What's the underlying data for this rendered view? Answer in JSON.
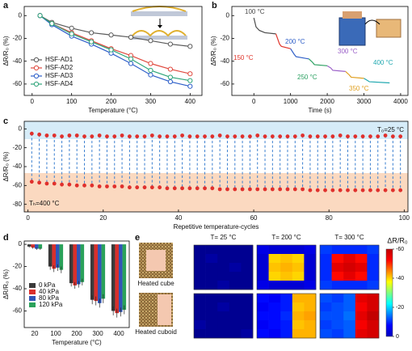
{
  "chart_data": [
    {
      "type": "line",
      "label": "a",
      "xlabel": "Temperature (°C)",
      "ylabel": "ΔR/R₀ (%)",
      "x": [
        20,
        50,
        100,
        150,
        200,
        250,
        300,
        350,
        400
      ],
      "xlim": [
        -20,
        430
      ],
      "xticks": [
        0,
        100,
        200,
        300,
        400
      ],
      "ylim": [
        -70,
        8
      ],
      "yticks": [
        0,
        -20,
        -40,
        -60
      ],
      "marker": "open-circle",
      "legend": "lower left",
      "series": [
        {
          "name": "HSF-AD1",
          "color": "#5a5a5a",
          "values": [
            0,
            -6,
            -11,
            -15,
            -17,
            -19,
            -22,
            -25,
            -27
          ]
        },
        {
          "name": "HSF-AD2",
          "color": "#e04a3f",
          "values": [
            0,
            -7,
            -15,
            -22,
            -29,
            -35,
            -42,
            -47,
            -51
          ]
        },
        {
          "name": "HSF-AD3",
          "color": "#2e5fc9",
          "values": [
            0,
            -8,
            -18,
            -25,
            -33,
            -42,
            -52,
            -58,
            -62
          ]
        },
        {
          "name": "HSF-AD4",
          "color": "#2fa57a",
          "values": [
            0,
            -7,
            -16,
            -23,
            -30,
            -38,
            -48,
            -54,
            -57
          ]
        }
      ]
    },
    {
      "type": "line",
      "label": "b",
      "xlabel": "Time (s)",
      "ylabel": "ΔR/R₀ (%)",
      "xlim": [
        -600,
        4200
      ],
      "xticks": [
        0,
        1000,
        2000,
        3000,
        4000
      ],
      "ylim": [
        -70,
        8
      ],
      "yticks": [
        0,
        -20,
        -40,
        -60
      ],
      "series": [
        {
          "name": "100 °C",
          "color": "#4a4a4a",
          "x": [
            0,
            60,
            150,
            300,
            600
          ],
          "values": [
            -2,
            -10,
            -13,
            -15,
            -16
          ]
        },
        {
          "name": "150 °C",
          "color": "#e0352b",
          "x": [
            600,
            700,
            750,
            1000
          ],
          "values": [
            -16,
            -25,
            -27,
            -29
          ]
        },
        {
          "name": "200 °C",
          "color": "#2f5fc8",
          "x": [
            1000,
            1100,
            1150,
            1500
          ],
          "values": [
            -29,
            -34,
            -36,
            -38
          ]
        },
        {
          "name": "250 °C",
          "color": "#2aa060",
          "x": [
            1500,
            1600,
            1650,
            2000
          ],
          "values": [
            -38,
            -41,
            -43,
            -44
          ]
        },
        {
          "name": "300 °C",
          "color": "#9a5fc8",
          "x": [
            2000,
            2100,
            2150,
            2500
          ],
          "values": [
            -44,
            -46,
            -48,
            -49
          ]
        },
        {
          "name": "350 °C",
          "color": "#e0a020",
          "x": [
            2500,
            2600,
            2650,
            3000
          ],
          "values": [
            -49,
            -52,
            -54,
            -55
          ]
        },
        {
          "name": "400 °C",
          "color": "#20a8b0",
          "x": [
            3000,
            3100,
            3150,
            3700
          ],
          "values": [
            -55,
            -57,
            -58,
            -59
          ]
        }
      ]
    },
    {
      "type": "cycle",
      "label": "c",
      "xlabel": "Repetitive temperature-cycles",
      "ylabel": "ΔR/R₀ (%)",
      "xlim": [
        -1,
        101
      ],
      "xticks": [
        0,
        20,
        40,
        60,
        80,
        100
      ],
      "ylim": [
        -88,
        8
      ],
      "yticks": [
        0,
        -20,
        -40,
        -60,
        -80
      ],
      "annotations": [
        "T₀=25 °C",
        "Tₕ=400 °C"
      ],
      "line_color": "#3a7fd0",
      "x": [
        1,
        3,
        5,
        7,
        9,
        11,
        13,
        15,
        17,
        19,
        21,
        23,
        25,
        27,
        29,
        31,
        33,
        35,
        37,
        39,
        41,
        43,
        45,
        47,
        49,
        51,
        53,
        55,
        57,
        59,
        61,
        63,
        65,
        67,
        69,
        71,
        73,
        75,
        77,
        79,
        81,
        83,
        85,
        87,
        89,
        91,
        93,
        95,
        97,
        99
      ],
      "series": [
        {
          "color": "#e0302c",
          "values": [
            -5,
            -6,
            -7,
            -7,
            -8,
            -7,
            -7,
            -8,
            -8,
            -7,
            -8,
            -8,
            -7,
            -8,
            -8,
            -8,
            -7,
            -8,
            -8,
            -8,
            -7,
            -8,
            -8,
            -8,
            -8,
            -7,
            -8,
            -8,
            -8,
            -8,
            -7,
            -8,
            -8,
            -8,
            -8,
            -8,
            -7,
            -8,
            -8,
            -8,
            -8,
            -7,
            -8,
            -8,
            -8,
            -8,
            -8,
            -7,
            -8,
            -8
          ]
        },
        {
          "color": "#e0302c",
          "values": [
            -56,
            -57,
            -58,
            -58,
            -59,
            -59,
            -60,
            -60,
            -60,
            -61,
            -61,
            -61,
            -61,
            -62,
            -62,
            -62,
            -62,
            -62,
            -63,
            -63,
            -63,
            -63,
            -63,
            -63,
            -63,
            -64,
            -64,
            -64,
            -64,
            -64,
            -64,
            -64,
            -64,
            -64,
            -64,
            -64,
            -64,
            -65,
            -65,
            -65,
            -65,
            -65,
            -65,
            -65,
            -65,
            -65,
            -65,
            -65,
            -65,
            -65
          ]
        }
      ]
    },
    {
      "type": "bar",
      "label": "d",
      "xlabel": "Temperature (°C)",
      "ylabel": "ΔR/R₀ (%)",
      "categories": [
        "20",
        "100",
        "200",
        "300",
        "400"
      ],
      "ylim": [
        -75,
        3
      ],
      "yticks": [
        0,
        -20,
        -40,
        -60
      ],
      "legend": "lower left",
      "series": [
        {
          "name": "0 kPa",
          "color": "#3a3a3a",
          "values": [
            -2,
            -20,
            -35,
            -50,
            -60
          ],
          "errors": [
            1,
            3,
            3,
            4,
            4
          ]
        },
        {
          "name": "40 kPa",
          "color": "#d9302c",
          "values": [
            -3,
            -22,
            -37,
            -51,
            -62
          ],
          "errors": [
            1,
            3,
            3,
            4,
            4
          ]
        },
        {
          "name": "80 kPa",
          "color": "#2f55b8",
          "values": [
            -4,
            -21,
            -36,
            -53,
            -61
          ],
          "errors": [
            1,
            3,
            3,
            4,
            4
          ]
        },
        {
          "name": "120 kPa",
          "color": "#2aa25a",
          "values": [
            -4,
            -23,
            -34,
            -49,
            -59
          ],
          "errors": [
            1,
            3,
            3,
            4,
            4
          ]
        }
      ]
    },
    {
      "type": "heatmap",
      "label": "e",
      "columns": [
        "T= 25 °C",
        "T= 200 °C",
        "T= 300 °C"
      ],
      "rows": [
        {
          "name": "Heated cube",
          "values": [
            [
              [
                -1,
                -1,
                -1,
                -1,
                -1
              ],
              [
                -1,
                -2,
                -1,
                -1,
                -1
              ],
              [
                -1,
                -1,
                -1,
                -2,
                -1
              ],
              [
                -1,
                -1,
                -1,
                -1,
                -1
              ],
              [
                -1,
                -1,
                -2,
                -1,
                -1
              ]
            ],
            [
              [
                -6,
                -5,
                -5,
                -5,
                -6
              ],
              [
                -5,
                -40,
                -41,
                -40,
                -5
              ],
              [
                -5,
                -41,
                -42,
                -41,
                -5
              ],
              [
                -5,
                -40,
                -41,
                -40,
                -5
              ],
              [
                -6,
                -5,
                -5,
                -5,
                -6
              ]
            ],
            [
              [
                -11,
                -10,
                -10,
                -10,
                -11
              ],
              [
                -10,
                -52,
                -54,
                -52,
                -10
              ],
              [
                -10,
                -54,
                -55,
                -54,
                -10
              ],
              [
                -10,
                -52,
                -54,
                -52,
                -10
              ],
              [
                -11,
                -10,
                -10,
                -10,
                -11
              ]
            ]
          ]
        },
        {
          "name": "Heated cuboid",
          "values": [
            [
              [
                -1,
                -1,
                -1,
                -1,
                -1
              ],
              [
                -1,
                -1,
                -2,
                -1,
                -1
              ],
              [
                -1,
                -1,
                -1,
                -1,
                -1
              ],
              [
                -2,
                -1,
                -1,
                -1,
                -1
              ],
              [
                -1,
                -1,
                -1,
                -1,
                -2
              ]
            ],
            [
              [
                -8,
                -7,
                -9,
                -42,
                -42
              ],
              [
                -7,
                -8,
                -9,
                -41,
                -42
              ],
              [
                -8,
                -8,
                -10,
                -42,
                -43
              ],
              [
                -7,
                -8,
                -9,
                -41,
                -42
              ],
              [
                -8,
                -7,
                -9,
                -42,
                -42
              ]
            ],
            [
              [
                -12,
                -11,
                -13,
                -54,
                -55
              ],
              [
                -11,
                -12,
                -13,
                -53,
                -55
              ],
              [
                -12,
                -12,
                -14,
                -54,
                -56
              ],
              [
                -11,
                -12,
                -13,
                -53,
                -55
              ],
              [
                -12,
                -11,
                -13,
                -54,
                -55
              ]
            ]
          ]
        }
      ],
      "colorbar": {
        "title": "ΔR/R₀",
        "lim": [
          -60,
          0
        ],
        "ticks": [
          -60,
          -40,
          -20,
          0
        ]
      }
    }
  ]
}
